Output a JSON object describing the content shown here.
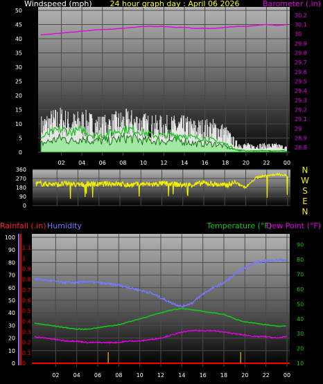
{
  "colors": {
    "background": "#000000",
    "plot_top": "#b4b4b4",
    "plot_bottom": "#000000",
    "grid": "#4a4a4a",
    "wind_gust": "#e6e6e6",
    "wind_avg_outline": "#006400",
    "wind_avg_fill": "#9be89b",
    "wind_mid": "#1ec81e",
    "barometer": "#e600e6",
    "direction": "#f0f000",
    "rain": "#ff0000",
    "rain_bars": "#c8a000",
    "humidity": "#7878ff",
    "temperature": "#14c814",
    "dewpoint": "#e600e6",
    "axis_text": "#ffffff",
    "header_text": "#ffff00"
  },
  "chart_data": [
    {
      "type": "line",
      "title": "24 hour graph day : April 06 2026",
      "left_label": "Windspeed (mph)",
      "right_label": "Barometer (.in)",
      "x_ticks": [
        "02",
        "04",
        "06",
        "08",
        "10",
        "12",
        "14",
        "16",
        "18",
        "20",
        "22",
        "00"
      ],
      "y_left_ticks": [
        0,
        5,
        10,
        15,
        20,
        25,
        30,
        35,
        40,
        45,
        50
      ],
      "y_left_range": [
        0,
        50
      ],
      "y_right_ticks": [
        "28.8",
        "28.9",
        "29",
        "29.1",
        "29.2",
        "29.3",
        "29.4",
        "29.5",
        "29.6",
        "29.7",
        "29.8",
        "29.9",
        "30",
        "30.1",
        "30.2"
      ],
      "y_right_range": [
        28.75,
        30.25
      ],
      "hours": [
        0,
        1,
        2,
        3,
        4,
        5,
        6,
        7,
        8,
        9,
        10,
        11,
        12,
        13,
        14,
        15,
        16,
        17,
        18,
        19,
        20,
        21,
        22,
        23,
        24
      ],
      "series": [
        {
          "key": "gust",
          "values": [
            12,
            14,
            15,
            13,
            14,
            13,
            12,
            13,
            14,
            14,
            13,
            12,
            12,
            12,
            12,
            11,
            11,
            11,
            9,
            4,
            3,
            3,
            3,
            3,
            2
          ]
        },
        {
          "key": "mid",
          "values": [
            5,
            7,
            8,
            7,
            8,
            6,
            6,
            7,
            8,
            8,
            7,
            6,
            6,
            6,
            6,
            5,
            5,
            4,
            3,
            1,
            0.5,
            0.5,
            0.5,
            0.5,
            0.5
          ]
        },
        {
          "key": "avg",
          "values": [
            3,
            4,
            5,
            4,
            5,
            4,
            4,
            4,
            5,
            5,
            4,
            4,
            4,
            4,
            4,
            3,
            3,
            3,
            2,
            0.8,
            0.5,
            0.5,
            0.5,
            0.5,
            0.5
          ]
        },
        {
          "key": "barometer",
          "values": [
            29.99,
            30.0,
            30.01,
            30.02,
            30.03,
            30.04,
            30.05,
            30.05,
            30.06,
            30.07,
            30.08,
            30.08,
            30.08,
            30.07,
            30.07,
            30.06,
            30.06,
            30.06,
            30.07,
            30.08,
            30.08,
            30.09,
            30.1,
            30.09,
            30.1
          ]
        }
      ]
    },
    {
      "type": "line",
      "y_left_ticks": [
        0,
        90,
        180,
        270,
        360
      ],
      "y_left_range": [
        0,
        360
      ],
      "compass_labels": [
        "N",
        "W",
        "S",
        "E",
        "N"
      ],
      "hours": [
        0,
        1,
        2,
        3,
        4,
        5,
        6,
        7,
        8,
        9,
        10,
        11,
        12,
        13,
        14,
        15,
        16,
        17,
        18,
        19,
        20,
        21,
        22,
        23,
        24
      ],
      "series": [
        {
          "key": "direction",
          "values": [
            220,
            215,
            210,
            220,
            205,
            215,
            210,
            220,
            215,
            205,
            215,
            210,
            220,
            215,
            205,
            210,
            225,
            215,
            200,
            230,
            180,
            280,
            300,
            310,
            300
          ]
        }
      ]
    },
    {
      "type": "line",
      "left_labels": [
        "Rainfall (.in)",
        "Humidity"
      ],
      "right_labels": [
        "Temperature (°F)",
        "Dew Point (°F)"
      ],
      "x_ticks": [
        "02",
        "04",
        "06",
        "08",
        "10",
        "12",
        "14",
        "16",
        "18",
        "20",
        "22",
        "00"
      ],
      "y_hum_ticks": [
        0,
        10,
        20,
        30,
        40,
        50,
        60,
        70,
        80,
        90,
        100
      ],
      "y_hum_range": [
        0,
        100
      ],
      "y_rain_ticks": [
        "0",
        "0.1",
        "0.2",
        "0.3",
        "0.4",
        "0.5",
        "0.6",
        "0.7",
        "0.8",
        "0.9",
        "1",
        "1.1"
      ],
      "y_rain_range": [
        0,
        1.2
      ],
      "y_temp_ticks": [
        10,
        20,
        30,
        40,
        50,
        60,
        70,
        80,
        90
      ],
      "y_temp_range": [
        10,
        95
      ],
      "hours": [
        0,
        1,
        2,
        3,
        4,
        5,
        6,
        7,
        8,
        9,
        10,
        11,
        12,
        13,
        14,
        15,
        16,
        17,
        18,
        19,
        20,
        21,
        22,
        23,
        24
      ],
      "series": [
        {
          "key": "humidity",
          "values": [
            67,
            66,
            65,
            64,
            64,
            65,
            64,
            63,
            62,
            60,
            58,
            56,
            52,
            48,
            45,
            48,
            55,
            60,
            64,
            70,
            76,
            80,
            81,
            82,
            82
          ]
        },
        {
          "key": "temperature",
          "values": [
            37,
            36,
            35,
            34,
            33,
            33,
            34,
            35,
            36,
            38,
            40,
            42,
            44,
            46,
            47,
            46,
            45,
            44,
            43,
            40,
            38,
            37,
            36,
            35,
            35
          ]
        },
        {
          "key": "dewpoint",
          "values": [
            28,
            27,
            26,
            25,
            25,
            24,
            24,
            24,
            24,
            25,
            25,
            26,
            27,
            29,
            31,
            32,
            32,
            32,
            31,
            30,
            29,
            28,
            28,
            27,
            28
          ]
        },
        {
          "key": "rain",
          "values": [
            0,
            0,
            0,
            0,
            0,
            0,
            0,
            0,
            0,
            0,
            0,
            0,
            0,
            0,
            0,
            0,
            0,
            0,
            0,
            0,
            0,
            0,
            0,
            0,
            0
          ]
        }
      ],
      "rain_events": [
        7.0,
        19.6
      ]
    }
  ]
}
